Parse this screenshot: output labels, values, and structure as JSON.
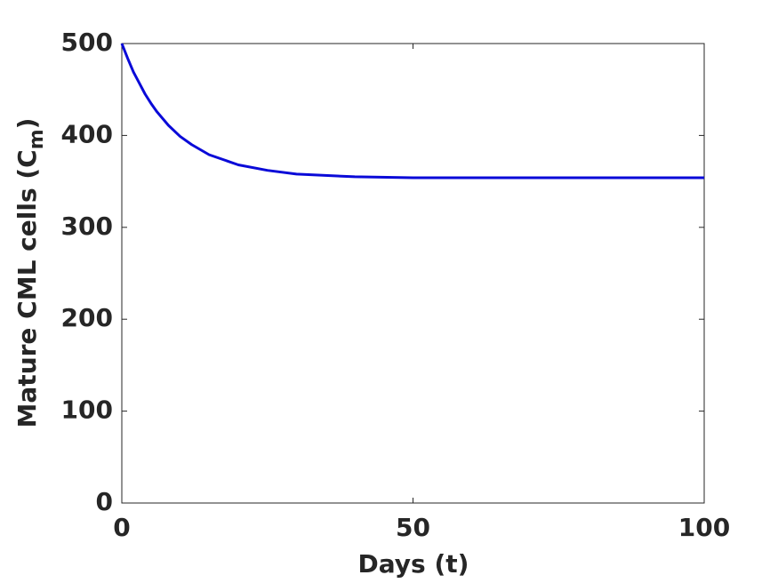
{
  "chart_data": {
    "type": "line",
    "xlabel": "Days (t)",
    "ylabel": {
      "text": "Mature CML cells (C",
      "subscript": "m",
      "suffix": ")"
    },
    "x": [
      0,
      1,
      2,
      3,
      4,
      5,
      6,
      8,
      10,
      12,
      15,
      20,
      25,
      30,
      40,
      50,
      60,
      70,
      80,
      90,
      100
    ],
    "series": [
      {
        "name": "Mature CML cells",
        "color": "#0a0ad8",
        "values": [
          500,
          484,
          469,
          457,
          445,
          435,
          426,
          411,
          399,
          390,
          379,
          368,
          362,
          358,
          355,
          354,
          354,
          354,
          354,
          354,
          354
        ]
      }
    ],
    "xlim": [
      0,
      100
    ],
    "xticks": [
      0,
      50,
      100
    ],
    "ylim": [
      0,
      500
    ],
    "yticks": [
      0,
      100,
      200,
      300,
      400,
      500
    ],
    "grid": false
  }
}
